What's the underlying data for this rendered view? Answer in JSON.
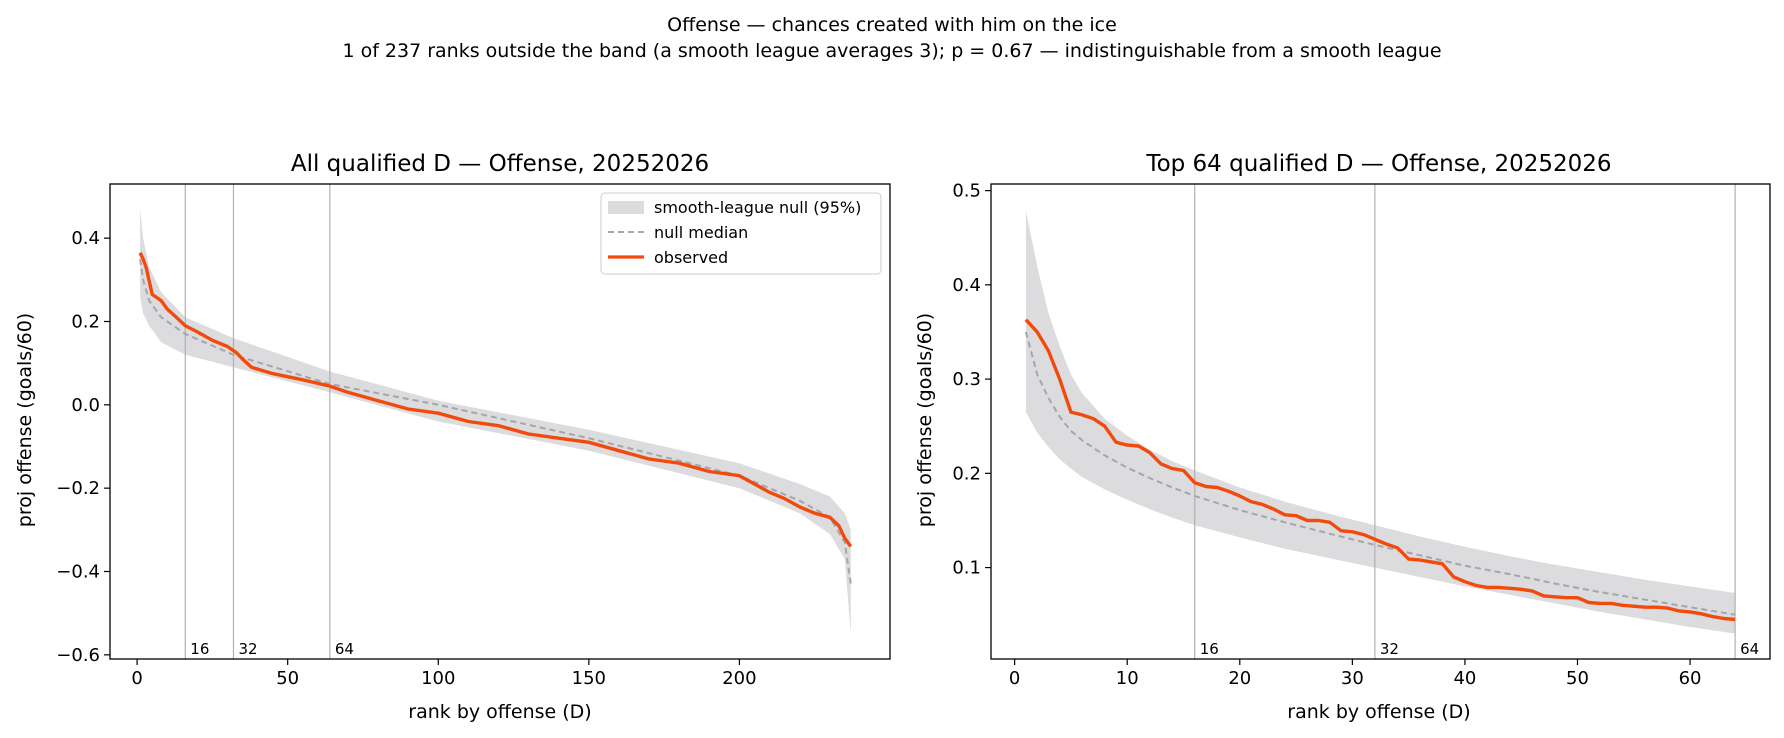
{
  "figure": {
    "suptitle_line1": "Offense — chances created with him on the ice",
    "suptitle_line2": "1 of 237 ranks outside the band (a smooth league averages 3); p = 0.67 — indistinguishable from a smooth league"
  },
  "colors": {
    "observed": "#f24a0c",
    "null_median": "#a4a6aa",
    "band": "#dcdcde",
    "guide": "#b0b0b0"
  },
  "chart_data": [
    {
      "type": "line",
      "title": "All qualified D — Offense, 20252026",
      "xlabel": "rank by offense (D)",
      "ylabel": "proj offense (goals/60)",
      "xlim": [
        -9,
        250
      ],
      "ylim": [
        -0.61,
        0.53
      ],
      "xticks": [
        0,
        50,
        100,
        150,
        200
      ],
      "yticks": [
        -0.6,
        -0.4,
        -0.2,
        0.0,
        0.2,
        0.4
      ],
      "ytick_labels": [
        "−0.6",
        "−0.4",
        "−0.2",
        "0.0",
        "0.2",
        "0.4"
      ],
      "xtick_labels": [
        "0",
        "50",
        "100",
        "150",
        "200"
      ],
      "grid": false,
      "legend": "top-right",
      "legend_entries": [
        "smooth-league null (95%)",
        "null median",
        "observed"
      ],
      "guides": [
        {
          "x": 16,
          "label": "16"
        },
        {
          "x": 32,
          "label": "32"
        },
        {
          "x": 64,
          "label": "64"
        }
      ],
      "band": {
        "x": [
          1,
          2,
          4,
          8,
          16,
          32,
          64,
          100,
          150,
          200,
          220,
          230,
          235,
          237
        ],
        "lower": [
          0.26,
          0.22,
          0.19,
          0.15,
          0.12,
          0.09,
          0.03,
          -0.04,
          -0.11,
          -0.2,
          -0.26,
          -0.31,
          -0.37,
          -0.55
        ],
        "upper": [
          0.47,
          0.4,
          0.33,
          0.27,
          0.21,
          0.16,
          0.08,
          0.01,
          -0.06,
          -0.14,
          -0.19,
          -0.22,
          -0.26,
          -0.3
        ]
      },
      "null_median": {
        "x": [
          1,
          2,
          4,
          8,
          16,
          32,
          64,
          100,
          150,
          200,
          220,
          230,
          235,
          237
        ],
        "y": [
          0.35,
          0.3,
          0.25,
          0.21,
          0.17,
          0.12,
          0.05,
          0.0,
          -0.08,
          -0.17,
          -0.23,
          -0.27,
          -0.33,
          -0.43
        ]
      },
      "observed": {
        "x": [
          1,
          2,
          3,
          5,
          8,
          10,
          13,
          16,
          20,
          25,
          30,
          33,
          35,
          38,
          45,
          55,
          64,
          70,
          80,
          90,
          100,
          110,
          120,
          130,
          140,
          150,
          160,
          170,
          180,
          190,
          200,
          205,
          210,
          215,
          220,
          225,
          230,
          233,
          235,
          237
        ],
        "y": [
          0.365,
          0.35,
          0.33,
          0.265,
          0.25,
          0.23,
          0.21,
          0.19,
          0.175,
          0.155,
          0.14,
          0.125,
          0.11,
          0.09,
          0.075,
          0.06,
          0.045,
          0.03,
          0.01,
          -0.01,
          -0.02,
          -0.04,
          -0.05,
          -0.07,
          -0.08,
          -0.09,
          -0.11,
          -0.13,
          -0.14,
          -0.16,
          -0.17,
          -0.19,
          -0.21,
          -0.225,
          -0.245,
          -0.26,
          -0.27,
          -0.29,
          -0.32,
          -0.34
        ]
      }
    },
    {
      "type": "line",
      "title": "Top 64 qualified D — Offense, 20252026",
      "xlabel": "rank by offense (D)",
      "ylabel": "proj offense (goals/60)",
      "xlim": [
        -2.1,
        67.1
      ],
      "ylim": [
        0.003,
        0.507
      ],
      "xticks": [
        0,
        10,
        20,
        30,
        40,
        50,
        60
      ],
      "yticks": [
        0.1,
        0.2,
        0.3,
        0.4,
        0.5
      ],
      "xtick_labels": [
        "0",
        "10",
        "20",
        "30",
        "40",
        "50",
        "60"
      ],
      "ytick_labels": [
        "0.1",
        "0.2",
        "0.3",
        "0.4",
        "0.5"
      ],
      "grid": false,
      "guides": [
        {
          "x": 16,
          "label": "16"
        },
        {
          "x": 32,
          "label": "32"
        },
        {
          "x": 64,
          "label": "64"
        }
      ],
      "band": {
        "x": [
          1,
          2,
          3,
          4,
          5,
          6,
          8,
          10,
          12,
          14,
          16,
          20,
          24,
          28,
          32,
          36,
          40,
          44,
          48,
          52,
          56,
          60,
          64
        ],
        "lower": [
          0.265,
          0.243,
          0.228,
          0.215,
          0.205,
          0.196,
          0.183,
          0.172,
          0.162,
          0.153,
          0.145,
          0.132,
          0.12,
          0.11,
          0.1,
          0.09,
          0.08,
          0.071,
          0.062,
          0.053,
          0.045,
          0.037,
          0.03
        ],
        "upper": [
          0.478,
          0.42,
          0.37,
          0.335,
          0.305,
          0.285,
          0.258,
          0.24,
          0.225,
          0.213,
          0.203,
          0.185,
          0.17,
          0.157,
          0.145,
          0.133,
          0.122,
          0.112,
          0.103,
          0.095,
          0.087,
          0.08,
          0.073
        ]
      },
      "null_median": {
        "x": [
          1,
          2,
          3,
          4,
          5,
          6,
          8,
          10,
          12,
          14,
          16,
          20,
          24,
          28,
          32,
          36,
          40,
          44,
          48,
          52,
          56,
          60,
          64
        ],
        "y": [
          0.35,
          0.305,
          0.28,
          0.26,
          0.245,
          0.235,
          0.219,
          0.206,
          0.195,
          0.185,
          0.176,
          0.161,
          0.148,
          0.136,
          0.124,
          0.113,
          0.102,
          0.093,
          0.083,
          0.074,
          0.066,
          0.058,
          0.05
        ]
      },
      "observed": {
        "x": [
          1,
          2,
          3,
          4,
          5,
          6,
          7,
          8,
          9,
          10,
          11,
          12,
          13,
          14,
          15,
          16,
          17,
          18,
          19,
          20,
          21,
          22,
          23,
          24,
          25,
          26,
          27,
          28,
          29,
          30,
          31,
          32,
          33,
          34,
          35,
          36,
          37,
          38,
          39,
          40,
          41,
          42,
          43,
          44,
          45,
          46,
          47,
          48,
          49,
          50,
          51,
          52,
          53,
          54,
          55,
          56,
          57,
          58,
          59,
          60,
          61,
          62,
          63,
          64
        ],
        "y": [
          0.363,
          0.35,
          0.33,
          0.3,
          0.265,
          0.262,
          0.258,
          0.25,
          0.233,
          0.23,
          0.229,
          0.222,
          0.21,
          0.205,
          0.203,
          0.19,
          0.186,
          0.185,
          0.181,
          0.176,
          0.17,
          0.167,
          0.162,
          0.156,
          0.155,
          0.15,
          0.15,
          0.148,
          0.139,
          0.138,
          0.135,
          0.13,
          0.125,
          0.121,
          0.109,
          0.108,
          0.106,
          0.104,
          0.09,
          0.085,
          0.081,
          0.079,
          0.079,
          0.078,
          0.077,
          0.075,
          0.07,
          0.069,
          0.068,
          0.068,
          0.063,
          0.062,
          0.062,
          0.06,
          0.059,
          0.058,
          0.058,
          0.057,
          0.054,
          0.053,
          0.051,
          0.048,
          0.046,
          0.045
        ]
      }
    }
  ]
}
